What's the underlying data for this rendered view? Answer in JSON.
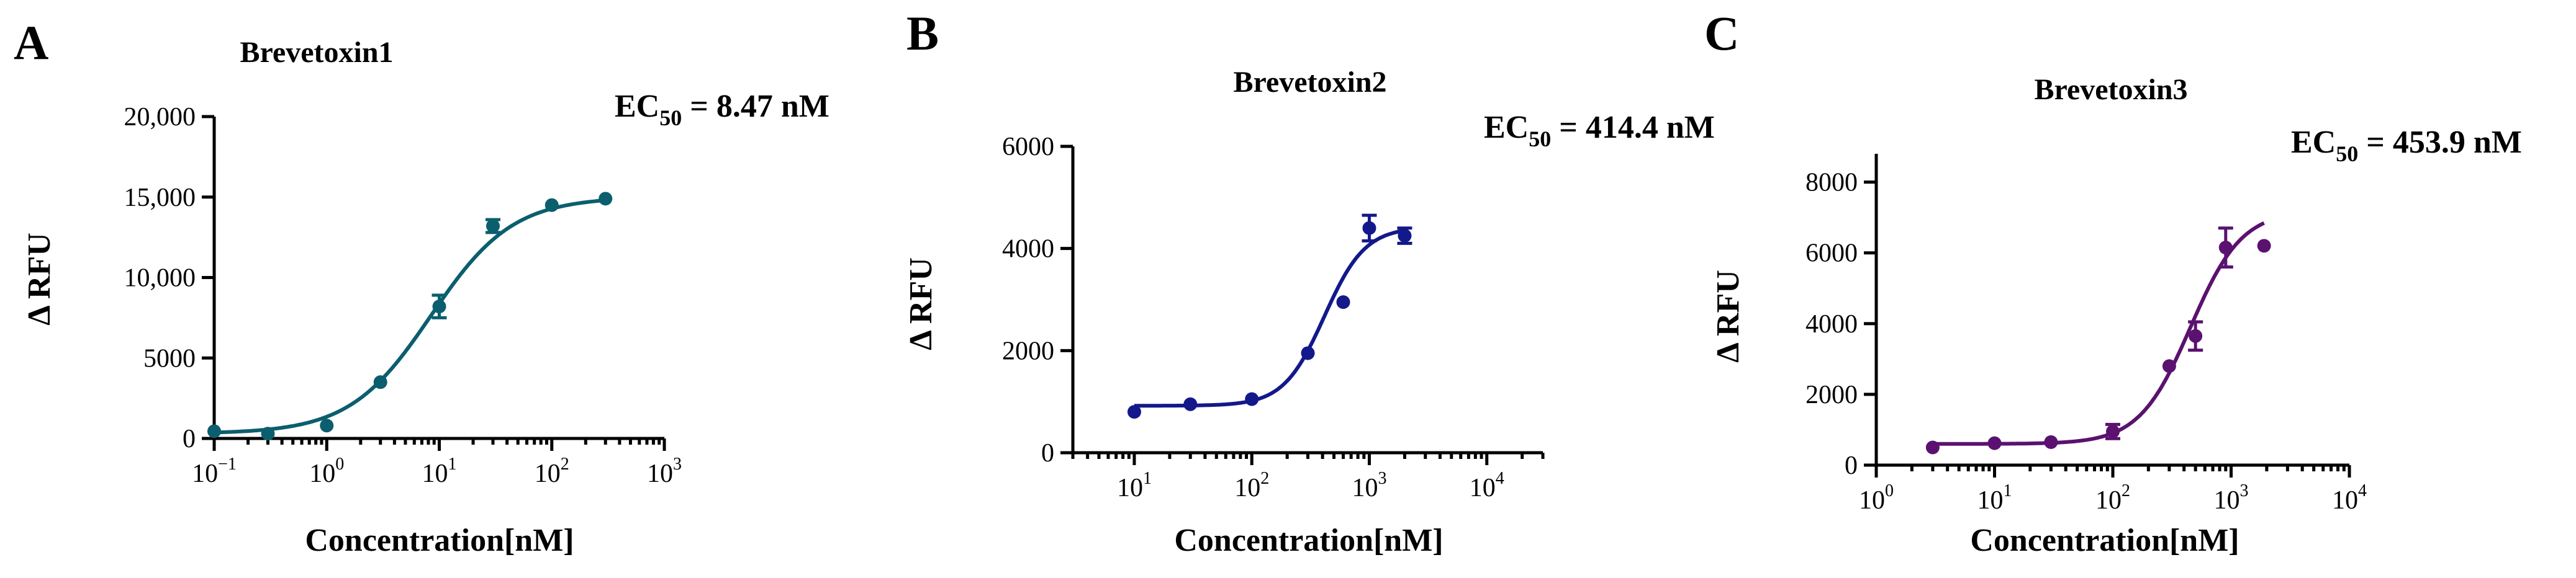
{
  "chart_data": [
    {
      "type": "scatter",
      "panel": "A",
      "title": "Brevetoxin1",
      "ec50_label": "EC",
      "ec50_sub": "50",
      "ec50_value": " = 8.47 nM",
      "xlabel": "Concentration[nM]",
      "ylabel": "Δ RFU",
      "xscale": "log",
      "xlim": [
        0.1,
        1000
      ],
      "ylim": [
        0,
        20000
      ],
      "x_ticks": [
        {
          "base": "10",
          "exp": "−1",
          "value": 0.1
        },
        {
          "base": "10",
          "exp": "0",
          "value": 1
        },
        {
          "base": "10",
          "exp": "1",
          "value": 10
        },
        {
          "base": "10",
          "exp": "2",
          "value": 100
        },
        {
          "base": "10",
          "exp": "3",
          "value": 1000
        }
      ],
      "y_ticks": [
        {
          "label": "0",
          "value": 0
        },
        {
          "label": "5000",
          "value": 5000
        },
        {
          "label": "10,000",
          "value": 10000
        },
        {
          "label": "15,000",
          "value": 15000
        },
        {
          "label": "20,000",
          "value": 20000
        }
      ],
      "color": "#0b5e6e",
      "series": [
        {
          "x": [
            0.1,
            0.3,
            1,
            3,
            10,
            30,
            100,
            300
          ],
          "y": [
            450,
            300,
            800,
            3500,
            8200,
            13200,
            14500,
            14900
          ],
          "err": [
            0,
            0,
            0,
            0,
            700,
            400,
            0,
            0
          ]
        }
      ],
      "fit": {
        "bottom": 300,
        "top": 15000,
        "ec50": 8.47,
        "hill": 1.2,
        "x_range": [
          0.1,
          300
        ]
      }
    },
    {
      "type": "scatter",
      "panel": "B",
      "title": "Brevetoxin2",
      "ec50_label": "EC",
      "ec50_sub": "50",
      "ec50_value": " = 414.4 nM",
      "xlabel": "Concentration[nM]",
      "ylabel": "Δ RFU",
      "xscale": "log",
      "xlim": [
        3,
        30000
      ],
      "ylim": [
        0,
        6000
      ],
      "x_ticks": [
        {
          "base": "10",
          "exp": "1",
          "value": 10
        },
        {
          "base": "10",
          "exp": "2",
          "value": 100
        },
        {
          "base": "10",
          "exp": "3",
          "value": 1000
        },
        {
          "base": "10",
          "exp": "4",
          "value": 10000
        }
      ],
      "y_ticks": [
        {
          "label": "0",
          "value": 0
        },
        {
          "label": "2000",
          "value": 2000
        },
        {
          "label": "4000",
          "value": 4000
        },
        {
          "label": "6000",
          "value": 6000
        }
      ],
      "color": "#13198a",
      "series": [
        {
          "x": [
            10,
            30,
            100,
            300,
            600,
            1000,
            2000
          ],
          "y": [
            800,
            950,
            1050,
            1950,
            2950,
            4400,
            4250
          ],
          "err": [
            0,
            0,
            0,
            0,
            0,
            250,
            150
          ]
        }
      ],
      "fit": {
        "bottom": 920,
        "top": 4420,
        "ec50": 414.4,
        "hill": 2.5,
        "x_range": [
          10,
          2000
        ]
      }
    },
    {
      "type": "scatter",
      "panel": "C",
      "title": "Brevetoxin3",
      "ec50_label": "EC",
      "ec50_sub": "50",
      "ec50_value": " = 453.9 nM",
      "xlabel": "Concentration[nM]",
      "ylabel": "Δ RFU",
      "xscale": "log",
      "xlim": [
        1,
        10000
      ],
      "ylim": [
        0,
        8800
      ],
      "x_ticks": [
        {
          "base": "10",
          "exp": "0",
          "value": 1
        },
        {
          "base": "10",
          "exp": "1",
          "value": 10
        },
        {
          "base": "10",
          "exp": "2",
          "value": 100
        },
        {
          "base": "10",
          "exp": "3",
          "value": 1000
        },
        {
          "base": "10",
          "exp": "4",
          "value": 10000
        }
      ],
      "y_ticks": [
        {
          "label": "0",
          "value": 0
        },
        {
          "label": "2000",
          "value": 2000
        },
        {
          "label": "4000",
          "value": 4000
        },
        {
          "label": "6000",
          "value": 6000
        },
        {
          "label": "8000",
          "value": 8000
        }
      ],
      "color": "#5b1170",
      "series": [
        {
          "x": [
            3,
            10,
            30,
            100,
            300,
            500,
            900,
            1900
          ],
          "y": [
            500,
            620,
            650,
            950,
            2800,
            3650,
            6150,
            6200
          ],
          "err": [
            0,
            0,
            0,
            200,
            0,
            400,
            550,
            0
          ]
        }
      ],
      "fit": {
        "bottom": 600,
        "top": 7200,
        "ec50": 453.9,
        "hill": 2.0,
        "x_range": [
          3,
          1900
        ]
      }
    }
  ]
}
